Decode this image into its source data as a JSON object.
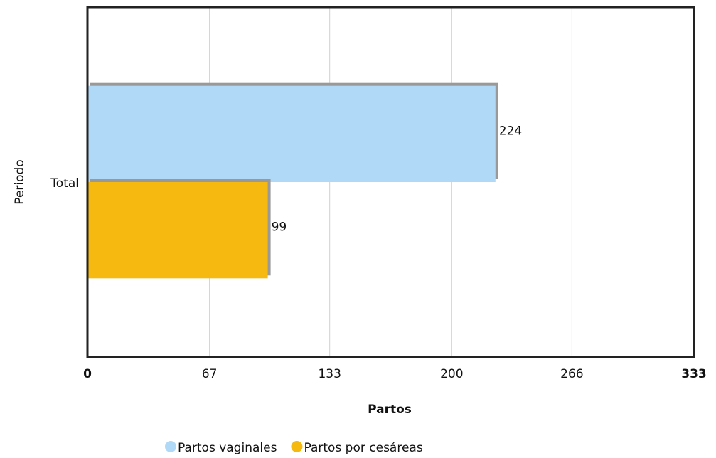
{
  "chart_data": {
    "type": "bar",
    "orientation": "horizontal",
    "categories": [
      "Total"
    ],
    "series": [
      {
        "name": "Partos vaginales",
        "color": "#b0d8f7",
        "values": [
          224
        ]
      },
      {
        "name": "Partos por cesáreas",
        "color": "#f5b90f",
        "values": [
          99
        ]
      }
    ],
    "xlabel": "Partos",
    "ylabel": "Periodo",
    "xlim": [
      0,
      333
    ],
    "xticks": [
      0,
      67,
      133,
      200,
      266,
      333
    ],
    "grid": true,
    "legend": "bottom"
  }
}
